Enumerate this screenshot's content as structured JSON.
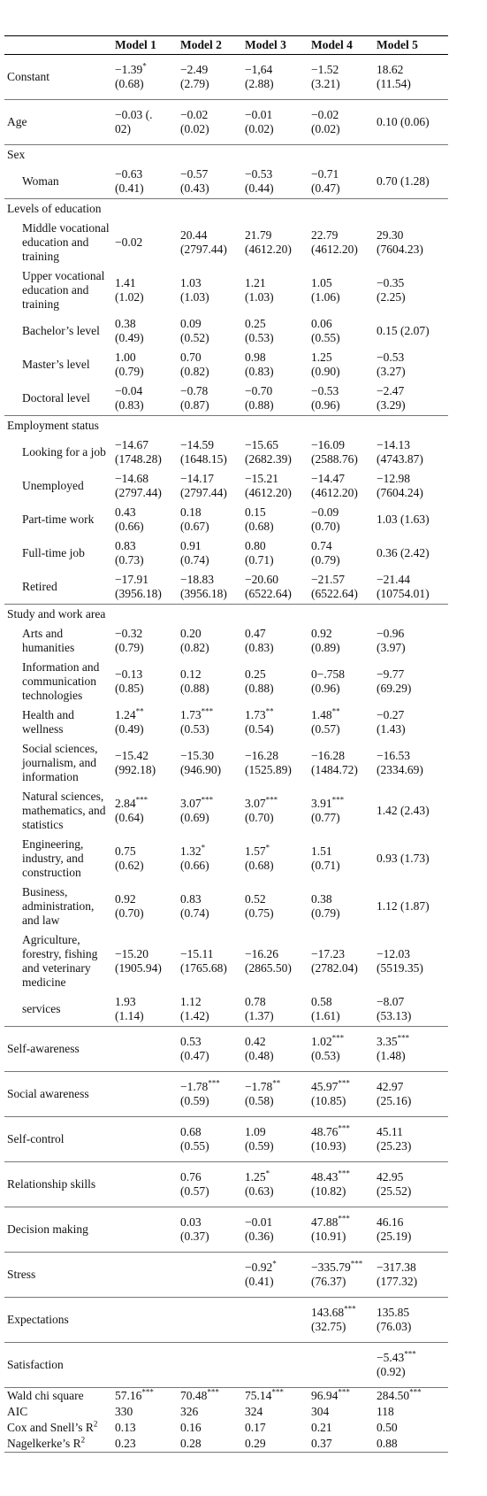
{
  "table": {
    "header": [
      "Model 1",
      "Model 2",
      "Model 3",
      "Model 4",
      "Model 5"
    ],
    "body": [
      {
        "label": "Constant",
        "cells": [
          {
            "est": "−1.39",
            "sig": "*",
            "se": "(0.68)"
          },
          {
            "est": "−2.49",
            "se": "(2.79)"
          },
          {
            "est": "−1,64",
            "se": "(2.88)"
          },
          {
            "est": "−1.52",
            "se": "(3.21)"
          },
          {
            "est": "18.62",
            "se": "(11.54)"
          }
        ]
      },
      {
        "label": "Age",
        "cells": [
          {
            "est": "−0.03 (.",
            "se": "02)"
          },
          {
            "est": "−0.02",
            "se": "(0.02)"
          },
          {
            "est": "−0.01",
            "se": "(0.02)"
          },
          {
            "est": "−0.02",
            "se": "(0.02)"
          },
          {
            "est": "0.10 (0.06)"
          }
        ]
      },
      {
        "label": "Sex",
        "rows": [
          {
            "label": "Woman",
            "cells": [
              {
                "est": "−0.63",
                "se": "(0.41)"
              },
              {
                "est": "−0.57",
                "se": "(0.43)"
              },
              {
                "est": "−0.53",
                "se": "(0.44)"
              },
              {
                "est": "−0.71",
                "se": "(0.47)"
              },
              {
                "est": "0.70 (1.28)"
              }
            ]
          }
        ]
      },
      {
        "label": "Levels of education",
        "rows": [
          {
            "label": "Middle vocational education and training",
            "cells": [
              {
                "est": "−0.02"
              },
              {
                "est": "20.44",
                "se": "(2797.44)"
              },
              {
                "est": "21.79",
                "se": "(4612.20)"
              },
              {
                "est": "22.79",
                "se": "(4612.20)"
              },
              {
                "est": "29.30",
                "se": "(7604.23)"
              }
            ]
          },
          {
            "label": "Upper vocational education and training",
            "cells": [
              {
                "est": "1.41",
                "se": "(1.02)"
              },
              {
                "est": "1.03",
                "se": "(1.03)"
              },
              {
                "est": "1.21",
                "se": "(1.03)"
              },
              {
                "est": "1.05",
                "se": "(1.06)"
              },
              {
                "est": "−0.35",
                "se": "(2.25)"
              }
            ]
          },
          {
            "label": "Bachelor’s level",
            "cells": [
              {
                "est": "0.38",
                "se": "(0.49)"
              },
              {
                "est": "0.09",
                "se": "(0.52)"
              },
              {
                "est": "0.25",
                "se": "(0.53)"
              },
              {
                "est": "0.06",
                "se": "(0.55)"
              },
              {
                "est": "0.15 (2.07)"
              }
            ]
          },
          {
            "label": "Master’s level",
            "cells": [
              {
                "est": "1.00",
                "se": "(0.79)"
              },
              {
                "est": "0.70",
                "se": "(0.82)"
              },
              {
                "est": "0.98",
                "se": "(0.83)"
              },
              {
                "est": "1.25",
                "se": "(0.90)"
              },
              {
                "est": "−0.53",
                "se": "(3.27)"
              }
            ]
          },
          {
            "label": "Doctoral level",
            "cells": [
              {
                "est": "−0.04",
                "se": "(0.83)"
              },
              {
                "est": "−0.78",
                "se": "(0.87)"
              },
              {
                "est": "−0.70",
                "se": "(0.88)"
              },
              {
                "est": "−0.53",
                "se": "(0.96)"
              },
              {
                "est": "−2.47",
                "se": "(3.29)"
              }
            ]
          }
        ]
      },
      {
        "label": "Employment status",
        "rows": [
          {
            "label": "Looking for a job",
            "cells": [
              {
                "est": "−14.67",
                "se": "(1748.28)"
              },
              {
                "est": "−14.59",
                "se": "(1648.15)"
              },
              {
                "est": "−15.65",
                "se": "(2682.39)"
              },
              {
                "est": "−16.09",
                "se": "(2588.76)"
              },
              {
                "est": "−14.13",
                "se": "(4743.87)"
              }
            ]
          },
          {
            "label": "Unemployed",
            "cells": [
              {
                "est": "−14.68",
                "se": "(2797.44)"
              },
              {
                "est": "−14.17",
                "se": "(2797.44)"
              },
              {
                "est": "−15.21",
                "se": "(4612.20)"
              },
              {
                "est": "−14.47",
                "se": "(4612.20)"
              },
              {
                "est": "−12.98",
                "se": "(7604.24)"
              }
            ]
          },
          {
            "label": "Part-time work",
            "cells": [
              {
                "est": "0.43",
                "se": "(0.66)"
              },
              {
                "est": "0.18",
                "se": "(0.67)"
              },
              {
                "est": "0.15",
                "se": "(0.68)"
              },
              {
                "est": "−0.09",
                "se": "(0.70)"
              },
              {
                "est": "1.03 (1.63)"
              }
            ]
          },
          {
            "label": "Full-time job",
            "cells": [
              {
                "est": "0.83",
                "se": "(0.73)"
              },
              {
                "est": "0.91",
                "se": "(0.74)"
              },
              {
                "est": "0.80",
                "se": "(0.71)"
              },
              {
                "est": "0.74",
                "se": "(0.79)"
              },
              {
                "est": "0.36 (2.42)"
              }
            ]
          },
          {
            "label": "Retired",
            "cells": [
              {
                "est": "−17.91",
                "se": "(3956.18)"
              },
              {
                "est": "−18.83",
                "se": "(3956.18)"
              },
              {
                "est": "−20.60",
                "se": "(6522.64)"
              },
              {
                "est": "−21.57",
                "se": "(6522.64)"
              },
              {
                "est": "−21.44",
                "se": "(10754.01)"
              }
            ]
          }
        ]
      },
      {
        "label": "Study and work area",
        "rows": [
          {
            "label": "Arts and humanities",
            "cells": [
              {
                "est": "−0.32",
                "se": "(0.79)"
              },
              {
                "est": "0.20",
                "se": "(0.82)"
              },
              {
                "est": "0.47",
                "se": "(0.83)"
              },
              {
                "est": "0.92",
                "se": "(0.89)"
              },
              {
                "est": "−0.96",
                "se": "(3.97)"
              }
            ]
          },
          {
            "label": "Information and communication technologies",
            "cells": [
              {
                "est": "−0.13",
                "se": "(0.85)"
              },
              {
                "est": "0.12",
                "se": "(0.88)"
              },
              {
                "est": "0.25",
                "se": "(0.88)"
              },
              {
                "est": "0−.758",
                "se": "(0.96)"
              },
              {
                "est": "−9.77",
                "se": "(69.29)"
              }
            ]
          },
          {
            "label": "Health and wellness",
            "cells": [
              {
                "est": "1.24",
                "sig": "**",
                "se": "(0.49)"
              },
              {
                "est": "1.73",
                "sig": "***",
                "se": "(0.53)"
              },
              {
                "est": "1.73",
                "sig": "**",
                "se": "(0.54)"
              },
              {
                "est": "1.48",
                "sig": "**",
                "se": "(0.57)"
              },
              {
                "est": "−0.27",
                "se": "(1.43)"
              }
            ]
          },
          {
            "label": "Social sciences, journalism, and information",
            "cells": [
              {
                "est": "−15.42",
                "se": "(992.18)"
              },
              {
                "est": "−15.30",
                "se": "(946.90)"
              },
              {
                "est": "−16.28",
                "se": "(1525.89)"
              },
              {
                "est": "−16.28",
                "se": "(1484.72)"
              },
              {
                "est": "−16.53",
                "se": "(2334.69)"
              }
            ]
          },
          {
            "label": "Natural sciences, mathematics, and statistics",
            "cells": [
              {
                "est": "2.84",
                "sig": "***",
                "se": "(0.64)"
              },
              {
                "est": "3.07",
                "sig": "***",
                "se": "(0.69)"
              },
              {
                "est": "3.07",
                "sig": "***",
                "se": "(0.70)"
              },
              {
                "est": "3.91",
                "sig": "***",
                "se": "(0.77)"
              },
              {
                "est": "1.42 (2.43)"
              }
            ]
          },
          {
            "label": "Engineering, industry, and construction",
            "cells": [
              {
                "est": "0.75",
                "se": "(0.62)"
              },
              {
                "est": "1.32",
                "sig": "*",
                "se": "(0.66)"
              },
              {
                "est": "1.57",
                "sig": "*",
                "se": "(0.68)"
              },
              {
                "est": "1.51",
                "se": "(0.71)"
              },
              {
                "est": "0.93 (1.73)"
              }
            ]
          },
          {
            "label": "Business, administration, and law",
            "cells": [
              {
                "est": "0.92",
                "se": "(0.70)"
              },
              {
                "est": "0.83",
                "se": "(0.74)"
              },
              {
                "est": "0.52",
                "se": "(0.75)"
              },
              {
                "est": "0.38",
                "se": "(0.79)"
              },
              {
                "est": "1.12 (1.87)"
              }
            ]
          },
          {
            "label": "Agriculture, forestry, fishing and veterinary medicine",
            "cells": [
              {
                "est": "−15.20",
                "se": "(1905.94)"
              },
              {
                "est": "−15.11",
                "se": "(1765.68)"
              },
              {
                "est": "−16.26",
                "se": "(2865.50)"
              },
              {
                "est": "−17.23",
                "se": "(2782.04)"
              },
              {
                "est": "−12.03",
                "se": "(5519.35)"
              }
            ]
          },
          {
            "label": "services",
            "cells": [
              {
                "est": "1.93",
                "se": "(1.14)"
              },
              {
                "est": "1.12",
                "se": "(1.42)"
              },
              {
                "est": "0.78",
                "se": "(1.37)"
              },
              {
                "est": "0.58",
                "se": "(1.61)"
              },
              {
                "est": "−8.07",
                "se": "(53.13)"
              }
            ]
          }
        ]
      },
      {
        "label": "Self-awareness",
        "cells": [
          null,
          {
            "est": "0.53",
            "se": "(0.47)"
          },
          {
            "est": "0.42",
            "se": "(0.48)"
          },
          {
            "est": "1.02",
            "sig": "***",
            "se": "(0.53)"
          },
          {
            "est": "3.35",
            "sig": "***",
            "se": "(1.48)"
          }
        ]
      },
      {
        "label": "Social awareness",
        "cells": [
          null,
          {
            "est": "−1.78",
            "sig": "***",
            "se": "(0.59)"
          },
          {
            "est": "−1.78",
            "sig": "**",
            "se": "(0.58)"
          },
          {
            "est": "45.97",
            "sig": "***",
            "se": "(10.85)"
          },
          {
            "est": "42.97",
            "se": "(25.16)"
          }
        ]
      },
      {
        "label": "Self-control",
        "cells": [
          null,
          {
            "est": "0.68",
            "se": "(0.55)"
          },
          {
            "est": "1.09",
            "se": "(0.59)"
          },
          {
            "est": "48.76",
            "sig": "***",
            "se": "(10.93)"
          },
          {
            "est": "45.11",
            "se": "(25.23)"
          }
        ]
      },
      {
        "label": "Relationship skills",
        "cells": [
          null,
          {
            "est": "0.76",
            "se": "(0.57)"
          },
          {
            "est": "1.25",
            "sig": "*",
            "se": "(0.63)"
          },
          {
            "est": "48.43",
            "sig": "***",
            "se": "(10.82)"
          },
          {
            "est": "42.95",
            "se": "(25.52)"
          }
        ]
      },
      {
        "label": "Decision making",
        "cells": [
          null,
          {
            "est": "0.03",
            "se": "(0.37)"
          },
          {
            "est": "−0.01",
            "se": "(0.36)"
          },
          {
            "est": "47.88",
            "sig": "***",
            "se": "(10.91)"
          },
          {
            "est": "46.16",
            "se": "(25.19)"
          }
        ]
      },
      {
        "label": "Stress",
        "cells": [
          null,
          null,
          {
            "est": "−0.92",
            "sig": "*",
            "se": "(0.41)"
          },
          {
            "est": "−335.79",
            "sig": "***",
            "se": "(76.37)"
          },
          {
            "est": "−317.38",
            "se": "(177.32)"
          }
        ]
      },
      {
        "label": "Expectations",
        "cells": [
          null,
          null,
          null,
          {
            "est": "143.68",
            "sig": "***",
            "se": "(32.75)"
          },
          {
            "est": "135.85",
            "se": "(76.03)"
          }
        ]
      },
      {
        "label": "Satisfaction",
        "cells": [
          null,
          null,
          null,
          null,
          {
            "est": "−5.43",
            "sig": "***",
            "se": "(0.92)"
          }
        ]
      }
    ],
    "stats": [
      {
        "label": "Wald chi square",
        "cells": [
          {
            "est": "57.16",
            "sig": "***"
          },
          {
            "est": "70.48",
            "sig": "***"
          },
          {
            "est": "75.14",
            "sig": "***"
          },
          {
            "est": "96.94",
            "sig": "***"
          },
          {
            "est": "284.50",
            "sig": "***"
          }
        ]
      },
      {
        "label": "AIC",
        "cells": [
          {
            "est": "330"
          },
          {
            "est": "326"
          },
          {
            "est": "324"
          },
          {
            "est": "304"
          },
          {
            "est": "118"
          }
        ]
      },
      {
        "label": "Cox and Snell’s R",
        "sup": "2",
        "cells": [
          {
            "est": "0.13"
          },
          {
            "est": "0.16"
          },
          {
            "est": "0.17"
          },
          {
            "est": "0.21"
          },
          {
            "est": "0.50"
          }
        ]
      },
      {
        "label": "Nagelkerke’s R",
        "sup": "2",
        "cells": [
          {
            "est": "0.23"
          },
          {
            "est": "0.28"
          },
          {
            "est": "0.29"
          },
          {
            "est": "0.37"
          },
          {
            "est": "0.88"
          }
        ]
      }
    ]
  }
}
